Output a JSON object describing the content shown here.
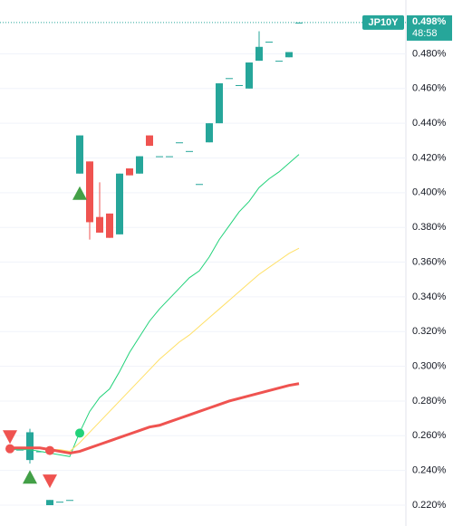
{
  "chart_data": {
    "type": "candlestick",
    "open": [
      0.252,
      0.252,
      0.246,
      0.251,
      0.22,
      0.222,
      0.223,
      0.411,
      0.418,
      0.386,
      0.388,
      0.376,
      0.414,
      0.411,
      0.433,
      0.421,
      0.421,
      0.429,
      0.424,
      0.405,
      0.429,
      0.44,
      0.466,
      0.462,
      0.46,
      0.476,
      0.487,
      0.476,
      0.478,
      0.498
    ],
    "high": [
      0.252,
      0.252,
      0.264,
      0.251,
      0.223,
      0.222,
      0.223,
      0.433,
      0.418,
      0.406,
      0.388,
      0.411,
      0.414,
      0.421,
      0.433,
      0.421,
      0.421,
      0.429,
      0.424,
      0.405,
      0.44,
      0.463,
      0.466,
      0.462,
      0.475,
      0.493,
      0.487,
      0.476,
      0.481,
      0.498
    ],
    "low": [
      0.252,
      0.252,
      0.244,
      0.251,
      0.22,
      0.222,
      0.223,
      0.411,
      0.373,
      0.377,
      0.374,
      0.376,
      0.41,
      0.411,
      0.427,
      0.421,
      0.421,
      0.429,
      0.424,
      0.405,
      0.429,
      0.44,
      0.466,
      0.462,
      0.46,
      0.476,
      0.487,
      0.476,
      0.478,
      0.498
    ],
    "close": [
      0.252,
      0.252,
      0.262,
      0.251,
      0.223,
      0.222,
      0.223,
      0.433,
      0.383,
      0.377,
      0.374,
      0.411,
      0.41,
      0.421,
      0.427,
      0.421,
      0.421,
      0.429,
      0.424,
      0.405,
      0.44,
      0.463,
      0.466,
      0.462,
      0.475,
      0.484,
      0.487,
      0.476,
      0.481,
      0.498
    ],
    "up_color": "#26a69a",
    "down_color": "#ef5350",
    "series": [
      {
        "color": "#22d27a",
        "width": 1,
        "values": [
          0.252,
          0.252,
          0.252,
          0.251,
          0.25,
          0.249,
          0.248,
          0.262,
          0.274,
          0.282,
          0.287,
          0.297,
          0.308,
          0.317,
          0.326,
          0.333,
          0.339,
          0.345,
          0.351,
          0.355,
          0.363,
          0.373,
          0.381,
          0.389,
          0.395,
          0.403,
          0.408,
          0.412,
          0.417,
          0.422
        ]
      },
      {
        "color": "#ffe066",
        "width": 1,
        "values": [
          0.253,
          0.253,
          0.253,
          0.253,
          0.252,
          0.252,
          0.251,
          0.256,
          0.262,
          0.268,
          0.274,
          0.28,
          0.286,
          0.292,
          0.298,
          0.304,
          0.309,
          0.314,
          0.318,
          0.323,
          0.328,
          0.333,
          0.338,
          0.343,
          0.348,
          0.353,
          0.357,
          0.361,
          0.365,
          0.368
        ]
      },
      {
        "color": "#ef5350",
        "width": 3,
        "values": [
          0.253,
          0.253,
          0.253,
          0.253,
          0.252,
          0.251,
          0.25,
          0.251,
          0.253,
          0.255,
          0.257,
          0.259,
          0.261,
          0.263,
          0.265,
          0.266,
          0.268,
          0.27,
          0.272,
          0.274,
          0.276,
          0.278,
          0.28,
          0.2815,
          0.283,
          0.2845,
          0.286,
          0.2875,
          0.289,
          0.29
        ]
      }
    ],
    "markers": [
      {
        "index": 0,
        "value": 0.2595,
        "shape": "triangle-down",
        "color": "#ef5350"
      },
      {
        "index": 0,
        "value": 0.2525,
        "shape": "circle",
        "color": "#ef5350"
      },
      {
        "index": 2,
        "value": 0.236,
        "shape": "triangle-up",
        "color": "#43a047"
      },
      {
        "index": 4,
        "value": 0.2515,
        "shape": "circle",
        "color": "#ef5350"
      },
      {
        "index": 4,
        "value": 0.234,
        "shape": "triangle-down",
        "color": "#ef5350"
      },
      {
        "index": 7,
        "value": 0.2615,
        "shape": "circle",
        "color": "#22d27a"
      },
      {
        "index": 7,
        "value": 0.3995,
        "shape": "triangle-up",
        "color": "#43a047"
      }
    ],
    "ylim": [
      0.208,
      0.511
    ],
    "yticks": [
      {
        "value": 0.22,
        "label": "0.220%"
      },
      {
        "value": 0.24,
        "label": "0.240%"
      },
      {
        "value": 0.26,
        "label": "0.260%"
      },
      {
        "value": 0.28,
        "label": "0.280%"
      },
      {
        "value": 0.3,
        "label": "0.300%"
      },
      {
        "value": 0.32,
        "label": "0.320%"
      },
      {
        "value": 0.34,
        "label": "0.340%"
      },
      {
        "value": 0.36,
        "label": "0.360%"
      },
      {
        "value": 0.38,
        "label": "0.380%"
      },
      {
        "value": 0.4,
        "label": "0.400%"
      },
      {
        "value": 0.42,
        "label": "0.420%"
      },
      {
        "value": 0.44,
        "label": "0.440%"
      },
      {
        "value": 0.46,
        "label": "0.460%"
      },
      {
        "value": 0.48,
        "label": "0.480%"
      }
    ],
    "grid": true,
    "last_price": {
      "symbol": "JP10Y",
      "value": 0.498,
      "label": "0.498%",
      "countdown": "48:58"
    }
  }
}
